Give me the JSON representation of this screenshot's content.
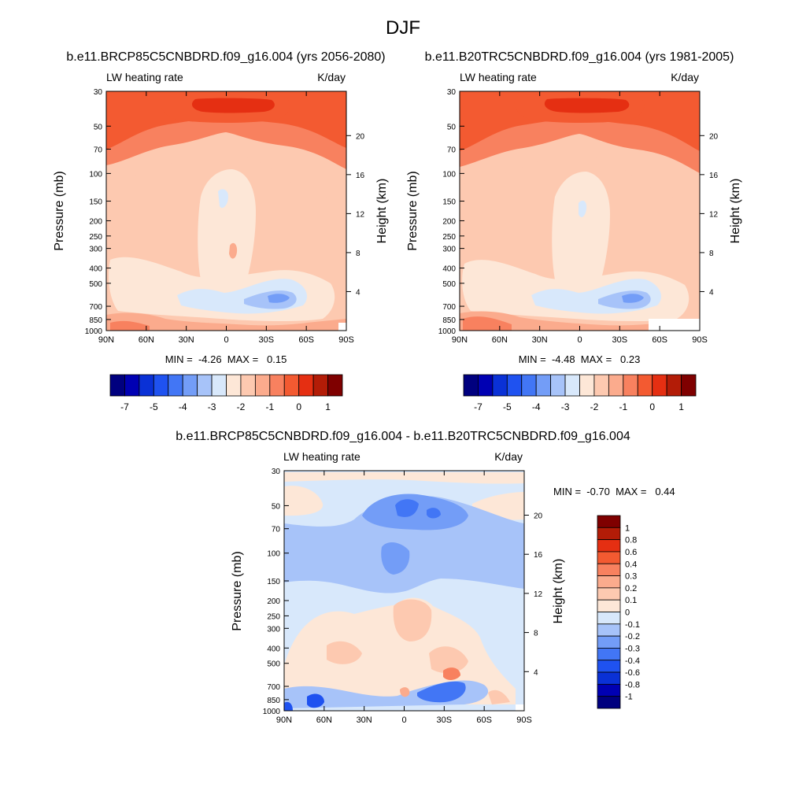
{
  "page_title": "DJF",
  "chart_data": [
    {
      "type": "heatmap",
      "id": "p1",
      "title": "b.e11.BRCP85C5CNBDRD.f09_g16.004 (yrs 2056-2080)",
      "left_label": "LW heating rate",
      "right_label": "K/day",
      "ylabel": "Pressure (mb)",
      "y2label": "Height (km)",
      "x_ticks": [
        "90N",
        "60N",
        "30N",
        "0",
        "30S",
        "60S",
        "90S"
      ],
      "y_ticks": [
        "30",
        "50",
        "70",
        "100",
        "150",
        "200",
        "250",
        "300",
        "400",
        "500",
        "700",
        "850",
        "1000"
      ],
      "y2_ticks": [
        "20",
        "16",
        "12",
        "8",
        "4"
      ],
      "stats": "MIN =  -4.26  MAX =   0.15",
      "colorbar": {
        "orientation": "horizontal",
        "labels": [
          "-7",
          "-5",
          "-4",
          "-3",
          "-2",
          "-1",
          "0",
          "1"
        ],
        "colors": [
          "#00007f",
          "#0000b3",
          "#0a31d6",
          "#1f52f0",
          "#4276f5",
          "#739df7",
          "#a7c3f9",
          "#d8e8fb",
          "#fde7d7",
          "#fdc9b0",
          "#fbab8d",
          "#f8815f",
          "#f35a31",
          "#e52f12",
          "#b31c07",
          "#7f0000"
        ]
      }
    },
    {
      "type": "heatmap",
      "id": "p2",
      "title": "b.e11.B20TRC5CNBDRD.f09_g16.004 (yrs 1981-2005)",
      "left_label": "LW heating rate",
      "right_label": "K/day",
      "ylabel": "Pressure (mb)",
      "y2label": "Height (km)",
      "x_ticks": [
        "90N",
        "60N",
        "30N",
        "0",
        "30S",
        "60S",
        "90S"
      ],
      "y_ticks": [
        "30",
        "50",
        "70",
        "100",
        "150",
        "200",
        "250",
        "300",
        "400",
        "500",
        "700",
        "850",
        "1000"
      ],
      "y2_ticks": [
        "20",
        "16",
        "12",
        "8",
        "4"
      ],
      "stats": "MIN =  -4.48  MAX =   0.23",
      "colorbar": {
        "orientation": "horizontal",
        "labels": [
          "-7",
          "-5",
          "-4",
          "-3",
          "-2",
          "-1",
          "0",
          "1"
        ],
        "colors": [
          "#00007f",
          "#0000b3",
          "#0a31d6",
          "#1f52f0",
          "#4276f5",
          "#739df7",
          "#a7c3f9",
          "#d8e8fb",
          "#fde7d7",
          "#fdc9b0",
          "#fbab8d",
          "#f8815f",
          "#f35a31",
          "#e52f12",
          "#b31c07",
          "#7f0000"
        ]
      }
    },
    {
      "type": "heatmap",
      "id": "p3",
      "title": "b.e11.BRCP85C5CNBDRD.f09_g16.004 - b.e11.B20TRC5CNBDRD.f09_g16.004",
      "left_label": "LW heating rate",
      "right_label": "K/day",
      "ylabel": "Pressure (mb)",
      "y2label": "Height (km)",
      "x_ticks": [
        "90N",
        "60N",
        "30N",
        "0",
        "30S",
        "60S",
        "90S"
      ],
      "y_ticks": [
        "30",
        "50",
        "70",
        "100",
        "150",
        "200",
        "250",
        "300",
        "400",
        "500",
        "700",
        "850",
        "1000"
      ],
      "y2_ticks": [
        "20",
        "16",
        "12",
        "8",
        "4"
      ],
      "stats": "MIN =  -0.70  MAX =   0.44",
      "colorbar": {
        "orientation": "vertical",
        "labels": [
          "1",
          "0.8",
          "0.6",
          "0.4",
          "0.3",
          "0.2",
          "0.1",
          "0",
          "-0.1",
          "-0.2",
          "-0.3",
          "-0.4",
          "-0.6",
          "-0.8",
          "-1"
        ],
        "colors": [
          "#7f0000",
          "#b31c07",
          "#e52f12",
          "#f35a31",
          "#f8815f",
          "#fbab8d",
          "#fdc9b0",
          "#fde7d7",
          "#d8e8fb",
          "#a7c3f9",
          "#739df7",
          "#4276f5",
          "#1f52f0",
          "#0a31d6",
          "#0000b3",
          "#00007f"
        ]
      }
    }
  ]
}
